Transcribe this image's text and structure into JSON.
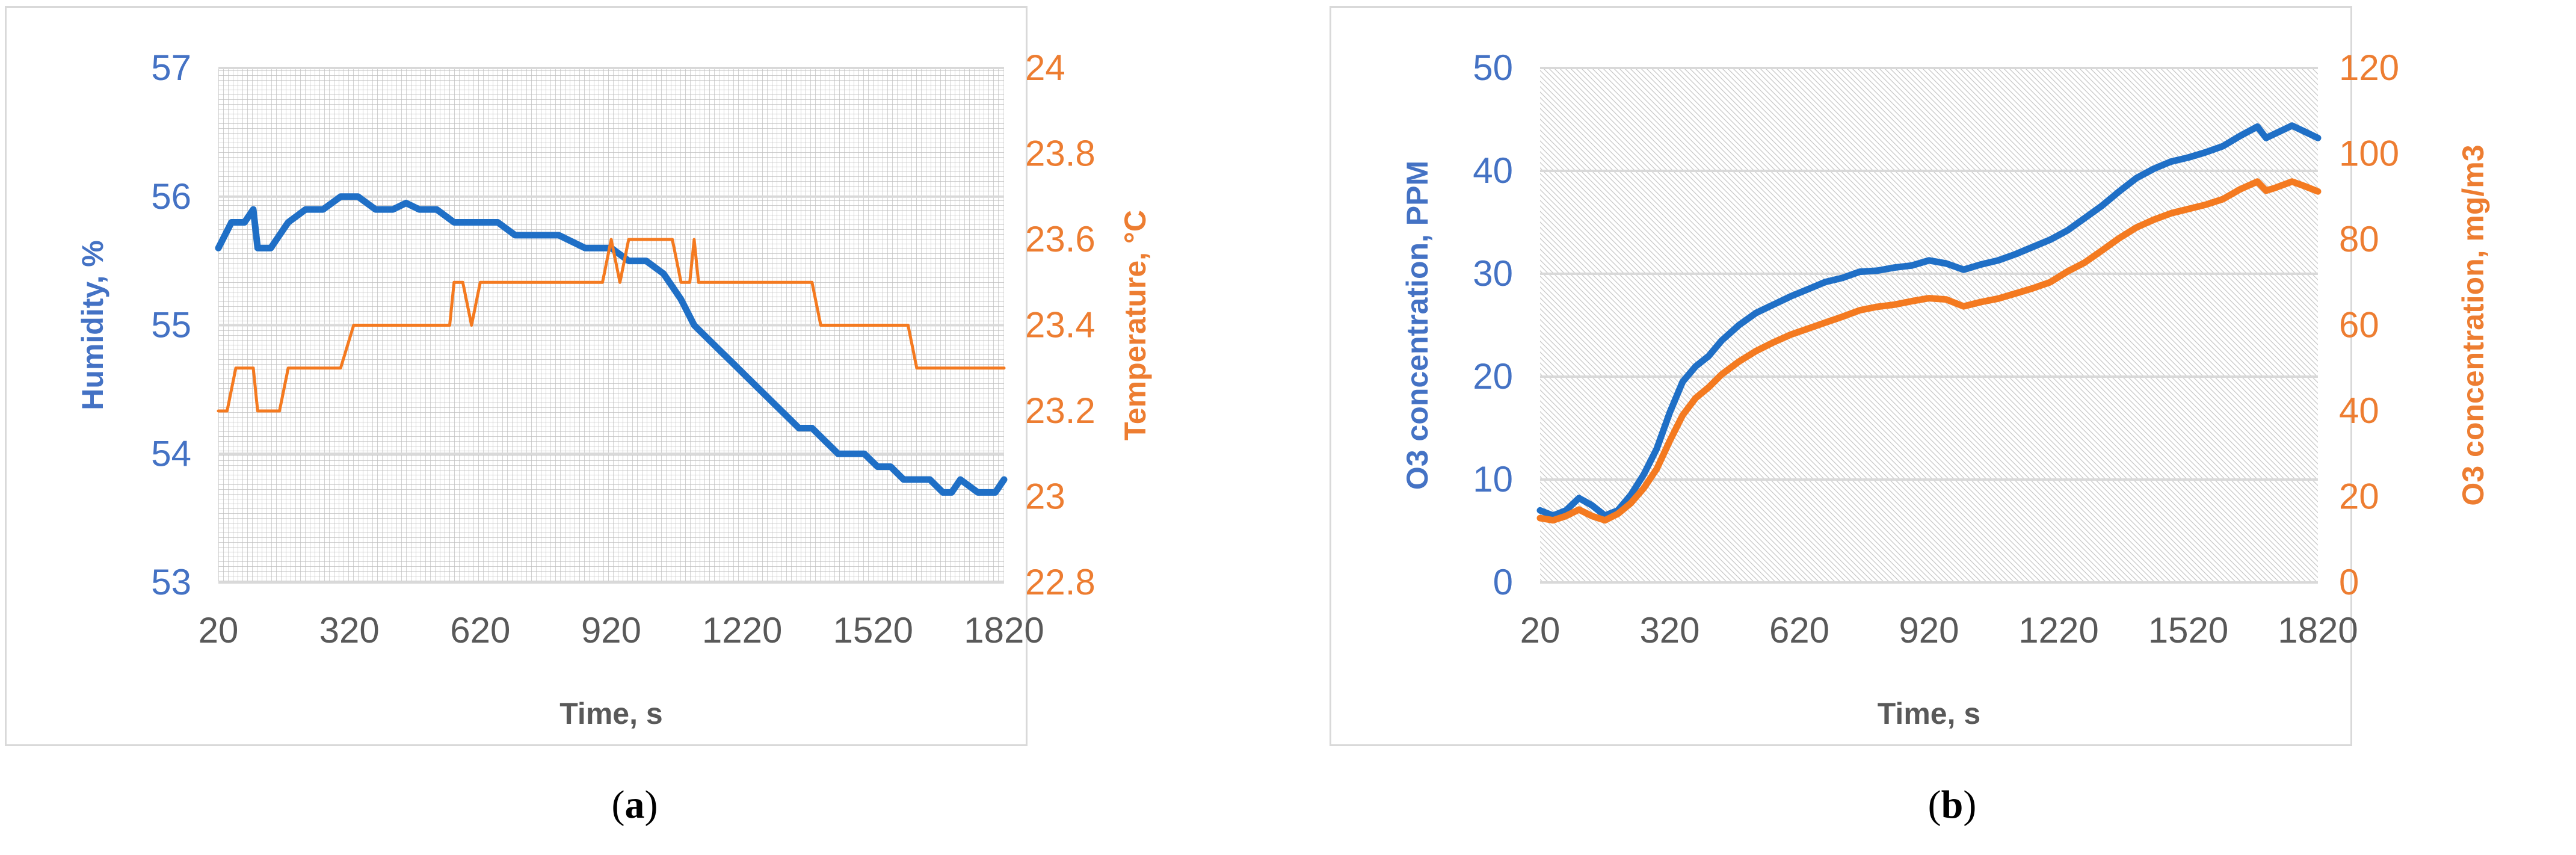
{
  "panels": [
    {
      "label_open": "(",
      "label_letter": "a",
      "label_close": ")"
    },
    {
      "label_open": "(",
      "label_letter": "b",
      "label_close": ")"
    }
  ],
  "colors": {
    "blue": "#1f6fc6",
    "orange": "#f47a20",
    "grid": "#d9d9d9"
  },
  "chart_data": [
    {
      "type": "line",
      "title": "",
      "xlabel": "Time, s",
      "ylabel": "Humidity, %",
      "y2label": "Temperature, °C",
      "xlim": [
        20,
        1820
      ],
      "ylim": [
        53,
        57
      ],
      "y2lim": [
        22.8,
        24
      ],
      "xticks": [
        "20",
        "320",
        "620",
        "920",
        "1220",
        "1520",
        "1820"
      ],
      "yticks": [
        "53",
        "54",
        "55",
        "56",
        "57"
      ],
      "y2ticks": [
        "22.8",
        "23",
        "23.2",
        "23.4",
        "23.6",
        "23.8",
        "24"
      ],
      "series": [
        {
          "axis": "left",
          "color": "#1f6fc6",
          "x": [
            20,
            50,
            80,
            100,
            110,
            140,
            180,
            220,
            260,
            300,
            340,
            380,
            420,
            450,
            480,
            520,
            560,
            620,
            660,
            700,
            740,
            800,
            860,
            920,
            960,
            1000,
            1040,
            1080,
            1110,
            1140,
            1170,
            1200,
            1230,
            1260,
            1290,
            1320,
            1350,
            1380,
            1410,
            1440,
            1470,
            1500,
            1530,
            1560,
            1590,
            1620,
            1650,
            1680,
            1700,
            1720,
            1760,
            1800,
            1820
          ],
          "y": [
            55.6,
            55.8,
            55.8,
            55.9,
            55.6,
            55.6,
            55.8,
            55.9,
            55.9,
            56.0,
            56.0,
            55.9,
            55.9,
            55.95,
            55.9,
            55.9,
            55.8,
            55.8,
            55.8,
            55.7,
            55.7,
            55.7,
            55.6,
            55.6,
            55.5,
            55.5,
            55.4,
            55.2,
            55.0,
            54.9,
            54.8,
            54.7,
            54.6,
            54.5,
            54.4,
            54.3,
            54.2,
            54.2,
            54.1,
            54.0,
            54.0,
            54.0,
            53.9,
            53.9,
            53.8,
            53.8,
            53.8,
            53.7,
            53.7,
            53.8,
            53.7,
            53.7,
            53.8
          ]
        },
        {
          "axis": "right",
          "color": "#f47a20",
          "x": [
            20,
            40,
            60,
            80,
            100,
            110,
            130,
            160,
            180,
            200,
            220,
            260,
            300,
            330,
            360,
            400,
            450,
            500,
            550,
            560,
            580,
            600,
            620,
            700,
            800,
            900,
            920,
            940,
            960,
            1000,
            1060,
            1080,
            1100,
            1110,
            1120,
            1140,
            1200,
            1300,
            1360,
            1380,
            1400,
            1500,
            1560,
            1600,
            1620,
            1700,
            1820
          ],
          "y": [
            23.2,
            23.2,
            23.3,
            23.3,
            23.3,
            23.2,
            23.2,
            23.2,
            23.3,
            23.3,
            23.3,
            23.3,
            23.3,
            23.4,
            23.4,
            23.4,
            23.4,
            23.4,
            23.4,
            23.5,
            23.5,
            23.4,
            23.5,
            23.5,
            23.5,
            23.5,
            23.6,
            23.5,
            23.6,
            23.6,
            23.6,
            23.5,
            23.5,
            23.6,
            23.5,
            23.5,
            23.5,
            23.5,
            23.5,
            23.5,
            23.4,
            23.4,
            23.4,
            23.4,
            23.3,
            23.3,
            23.3
          ]
        }
      ]
    },
    {
      "type": "line",
      "title": "",
      "xlabel": "Time, s",
      "ylabel": "O3 concentration, PPM",
      "y2label": "O3 concentration, mg/m3",
      "xlim": [
        20,
        1820
      ],
      "ylim": [
        0,
        50
      ],
      "y2lim": [
        0,
        120
      ],
      "xticks": [
        "20",
        "320",
        "620",
        "920",
        "1220",
        "1520",
        "1820"
      ],
      "yticks": [
        "0",
        "10",
        "20",
        "30",
        "40",
        "50"
      ],
      "y2ticks": [
        "0",
        "20",
        "40",
        "60",
        "80",
        "100",
        "120"
      ],
      "series": [
        {
          "axis": "left",
          "color": "#1f6fc6",
          "x": [
            20,
            50,
            80,
            110,
            140,
            170,
            200,
            230,
            260,
            290,
            320,
            350,
            380,
            410,
            440,
            480,
            520,
            560,
            600,
            640,
            680,
            720,
            760,
            800,
            840,
            880,
            920,
            960,
            1000,
            1040,
            1080,
            1120,
            1160,
            1200,
            1240,
            1280,
            1320,
            1360,
            1400,
            1440,
            1480,
            1520,
            1560,
            1600,
            1640,
            1680,
            1700,
            1720,
            1760,
            1790,
            1820
          ],
          "y": [
            7,
            6.5,
            7,
            8.2,
            7.5,
            6.5,
            7,
            8.5,
            10.5,
            13,
            16.5,
            19.5,
            21,
            22,
            23.5,
            25,
            26.2,
            27,
            27.8,
            28.5,
            29.2,
            29.6,
            30.2,
            30.3,
            30.6,
            30.8,
            31.3,
            31.0,
            30.4,
            30.9,
            31.3,
            31.9,
            32.6,
            33.3,
            34.2,
            35.4,
            36.6,
            38.0,
            39.3,
            40.2,
            40.9,
            41.3,
            41.8,
            42.4,
            43.4,
            44.3,
            43.2,
            43.6,
            44.4,
            43.8,
            43.2
          ]
        },
        {
          "axis": "right",
          "color": "#f47a20",
          "x": [
            20,
            50,
            80,
            110,
            140,
            170,
            200,
            230,
            260,
            290,
            320,
            350,
            380,
            410,
            440,
            480,
            520,
            560,
            600,
            640,
            680,
            720,
            760,
            800,
            840,
            880,
            920,
            960,
            1000,
            1040,
            1080,
            1120,
            1160,
            1200,
            1240,
            1280,
            1320,
            1360,
            1400,
            1440,
            1480,
            1520,
            1560,
            1600,
            1640,
            1680,
            1700,
            1720,
            1760,
            1790,
            1820
          ],
          "y": [
            15,
            14.5,
            15.5,
            17,
            15.5,
            14.5,
            16,
            18.5,
            22,
            26.5,
            33,
            39,
            43,
            45.5,
            48.5,
            51.5,
            54,
            56,
            57.8,
            59.2,
            60.6,
            62,
            63.5,
            64.3,
            64.8,
            65.6,
            66.3,
            66.0,
            64.4,
            65.4,
            66.2,
            67.4,
            68.6,
            70.0,
            72.5,
            74.6,
            77.4,
            80.3,
            82.8,
            84.6,
            86.1,
            87.1,
            88.1,
            89.4,
            91.7,
            93.5,
            91.4,
            92.0,
            93.5,
            92.4,
            91.2
          ]
        }
      ]
    }
  ]
}
